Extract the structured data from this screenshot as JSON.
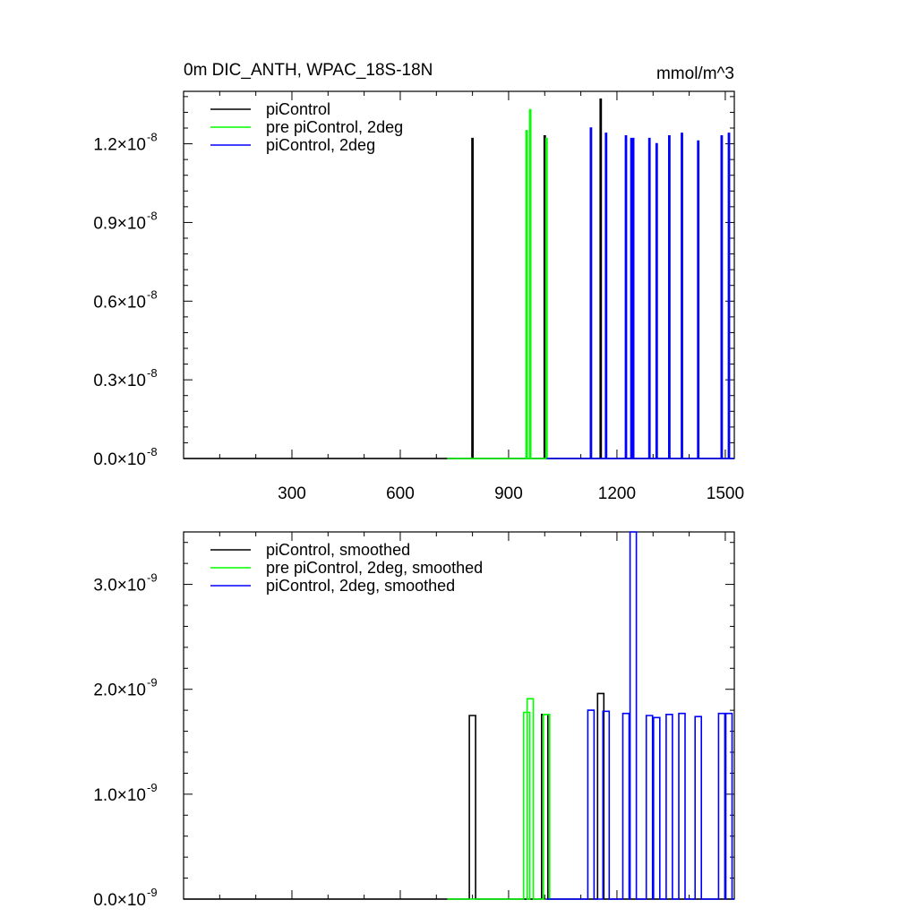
{
  "title_left": "0m DIC_ANTH, WPAC_18S-18N",
  "title_right": "mmol/m^3",
  "chart_data": [
    {
      "type": "line",
      "title": "0m DIC_ANTH, WPAC_18S-18N",
      "units": "mmol/m^3",
      "xlim": [
        0,
        1525
      ],
      "ylim": [
        0,
        1.4e-08
      ],
      "x_ticks": [
        300,
        600,
        900,
        1200,
        1500
      ],
      "x_tick_labels": [
        "300",
        "600",
        "900",
        "1200",
        "1500"
      ],
      "y_ticks": [
        0,
        3e-09,
        6e-09,
        9e-09,
        1.2e-08
      ],
      "y_tick_labels": [
        "0.0",
        "0.3",
        "0.6",
        "0.9",
        "1.2"
      ],
      "y_tick_exponent": "-8",
      "legend_placement": "top-left",
      "series": [
        {
          "name": "piControl",
          "color": "#000000",
          "spikes": [
            [
              800,
              1.22e-08
            ],
            [
              1000,
              1.23e-08
            ],
            [
              1155,
              1.37e-08
            ]
          ],
          "range": [
            0,
            1525
          ]
        },
        {
          "name": "pre piControl, 2deg",
          "color": "#00ff00",
          "spikes": [
            [
              950,
              1.25e-08
            ],
            [
              960,
              1.33e-08
            ],
            [
              1005,
              1.22e-08
            ]
          ],
          "range": [
            730,
            1010
          ]
        },
        {
          "name": "piControl, 2deg",
          "color": "#0000ff",
          "spikes": [
            [
              1128,
              1.26e-08
            ],
            [
              1170,
              1.24e-08
            ],
            [
              1225,
              1.23e-08
            ],
            [
              1240,
              1.22e-08
            ],
            [
              1245,
              1.22e-08
            ],
            [
              1290,
              1.22e-08
            ],
            [
              1310,
              1.2e-08
            ],
            [
              1345,
              1.23e-08
            ],
            [
              1380,
              1.24e-08
            ],
            [
              1425,
              1.21e-08
            ],
            [
              1490,
              1.23e-08
            ],
            [
              1510,
              1.24e-08
            ]
          ],
          "range": [
            1005,
            1525
          ]
        }
      ]
    },
    {
      "type": "line",
      "ylim": [
        0,
        3.5e-09
      ],
      "x_ticks": [
        300,
        600,
        900,
        1200,
        1500
      ],
      "y_ticks": [
        0,
        1e-09,
        2e-09,
        3e-09
      ],
      "y_tick_labels": [
        "0.0",
        "1.0",
        "2.0",
        "3.0"
      ],
      "y_tick_exponent": "-9",
      "legend_placement": "top-left",
      "series": [
        {
          "name": "piControl, smoothed",
          "color": "#000000",
          "spikes": [
            [
              800,
              1.75e-09
            ],
            [
              1000,
              1.76e-09
            ],
            [
              1155,
              1.96e-09
            ]
          ],
          "range": [
            0,
            1525
          ]
        },
        {
          "name": "pre piControl, 2deg, smoothed",
          "color": "#00ff00",
          "spikes": [
            [
              950,
              1.78e-09
            ],
            [
              960,
              1.91e-09
            ],
            [
              1005,
              1.76e-09
            ]
          ],
          "range": [
            730,
            1010
          ]
        },
        {
          "name": "piControl, 2deg, smoothed",
          "color": "#0000ff",
          "spikes": [
            [
              1128,
              1.8e-09
            ],
            [
              1170,
              1.79e-09
            ],
            [
              1225,
              1.77e-09
            ],
            [
              1245,
              3.5e-09
            ],
            [
              1290,
              1.75e-09
            ],
            [
              1310,
              1.73e-09
            ],
            [
              1345,
              1.76e-09
            ],
            [
              1380,
              1.77e-09
            ],
            [
              1425,
              1.74e-09
            ],
            [
              1490,
              1.77e-09
            ],
            [
              1510,
              1.77e-09
            ]
          ],
          "range": [
            1005,
            1525
          ]
        }
      ]
    }
  ]
}
